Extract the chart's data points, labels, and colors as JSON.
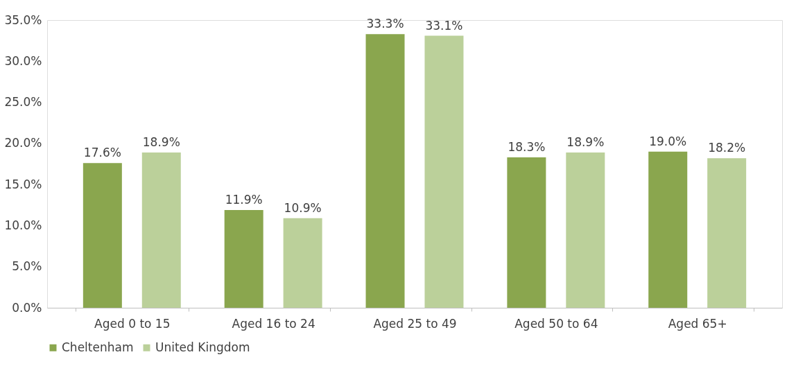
{
  "chart_data": {
    "type": "bar",
    "categories": [
      "Aged 0 to 15",
      "Aged 16 to 24",
      "Aged 25 to 49",
      "Aged 50 to 64",
      "Aged 65+"
    ],
    "series": [
      {
        "name": "Cheltenham",
        "color": "#8aa64e",
        "values": [
          17.6,
          11.9,
          33.3,
          18.3,
          19.0
        ],
        "value_labels": [
          "17.6%",
          "11.9%",
          "33.3%",
          "18.3%",
          "19.0%"
        ]
      },
      {
        "name": "United Kingdom",
        "color": "#bbd09a",
        "values": [
          18.9,
          10.9,
          33.1,
          18.9,
          18.2
        ],
        "value_labels": [
          "18.9%",
          "10.9%",
          "33.1%",
          "18.9%",
          "18.2%"
        ]
      }
    ],
    "ylim": [
      0,
      35
    ],
    "yticks": [
      {
        "value": 0,
        "label": "0.0%"
      },
      {
        "value": 5,
        "label": "5.0%"
      },
      {
        "value": 10,
        "label": "10.0%"
      },
      {
        "value": 15,
        "label": "15.0%"
      },
      {
        "value": 20,
        "label": "20.0%"
      },
      {
        "value": 25,
        "label": "25.0%"
      },
      {
        "value": 30,
        "label": "30.0%"
      },
      {
        "value": 35,
        "label": "35.0%"
      }
    ],
    "grid": false,
    "legend": "bottom"
  }
}
